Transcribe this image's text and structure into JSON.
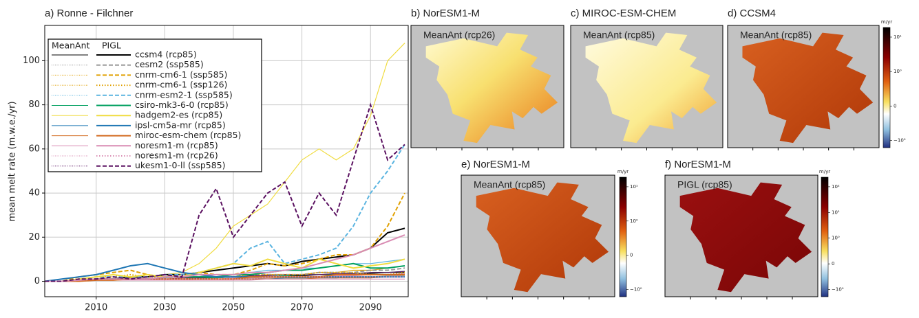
{
  "chart_data": {
    "type": "line",
    "title": "a) Ronne - Filchner",
    "y_label": "mean melt rate (m.w.e./yr)",
    "legend_headers": [
      "MeanAnt",
      "PIGL"
    ],
    "x": [
      1995,
      2000,
      2005,
      2010,
      2015,
      2020,
      2025,
      2030,
      2035,
      2040,
      2045,
      2050,
      2055,
      2060,
      2065,
      2070,
      2075,
      2080,
      2085,
      2090,
      2095,
      2100
    ],
    "xlim": [
      1995,
      2101
    ],
    "xticks": [
      2010,
      2030,
      2050,
      2070,
      2090
    ],
    "ylim": [
      -7,
      116
    ],
    "yticks": [
      0,
      20,
      40,
      60,
      80,
      100
    ],
    "grid": true,
    "series": [
      {
        "name": "ccsm4 (rcp85)",
        "color": "#000000",
        "dash": "solid",
        "values": [
          0,
          0,
          0.5,
          1,
          1,
          2,
          2,
          3,
          3,
          4,
          5,
          6,
          7,
          8,
          7,
          9,
          10,
          11,
          12,
          15,
          22,
          24
        ],
        "meanant_values": [
          0,
          0,
          0,
          0.5,
          0.5,
          1,
          1,
          1,
          1,
          1.5,
          1.5,
          2,
          2,
          2,
          2.5,
          2.5,
          3,
          3,
          3,
          3.5,
          4,
          4
        ]
      },
      {
        "name": "cesm2 (ssp585)",
        "color": "#9a9a9a",
        "dash": "dashed",
        "values": [
          0,
          0,
          0.5,
          1,
          1,
          1,
          1,
          1.5,
          2,
          2,
          2,
          2,
          3,
          3,
          3,
          3,
          4,
          4,
          4,
          5,
          5,
          6
        ],
        "meanant_values": [
          0,
          0,
          0,
          0.5,
          0.5,
          0.5,
          0.5,
          1,
          1,
          1,
          1,
          1,
          1,
          1.5,
          1.5,
          1.5,
          2,
          2,
          2,
          2,
          2.5,
          2.5
        ]
      },
      {
        "name": "cnrm-cm6-1 (ssp585)",
        "color": "#e0a000",
        "dash": "dashed",
        "values": [
          0,
          0,
          2,
          3,
          4,
          5,
          3,
          2,
          3,
          4,
          3,
          3,
          5,
          8,
          7,
          8,
          10,
          12,
          12,
          15,
          25,
          40
        ],
        "meanant_values": [
          0,
          0,
          0.5,
          1,
          1,
          1.5,
          1,
          1,
          1.5,
          2,
          1.5,
          2,
          2,
          3,
          3,
          3,
          4,
          4,
          5,
          5,
          6,
          7
        ]
      },
      {
        "name": "cnrm-cm6-1 (ssp126)",
        "color": "#e0a000",
        "dash": "dotted",
        "values": [
          0,
          0,
          1,
          2,
          2,
          3,
          2,
          2,
          2,
          3,
          2,
          2,
          3,
          3,
          3,
          3,
          4,
          4,
          4,
          3,
          3,
          4
        ],
        "meanant_values": [
          0,
          0,
          0.5,
          1,
          1,
          1,
          1,
          1,
          1,
          1,
          1,
          1,
          1.5,
          1.5,
          1.5,
          1.5,
          2,
          2,
          2,
          2,
          2,
          2
        ]
      },
      {
        "name": "cnrm-esm2-1 (ssp585)",
        "color": "#5ab4e0",
        "dash": "dashed",
        "values": [
          0,
          0,
          1,
          2,
          2,
          2,
          2,
          3,
          3,
          4,
          6,
          8,
          15,
          18,
          8,
          10,
          12,
          15,
          25,
          40,
          50,
          62
        ],
        "meanant_values": [
          0,
          0,
          0.5,
          1,
          1,
          1,
          1,
          1.5,
          2,
          2,
          3,
          3,
          4,
          5,
          5,
          6,
          6,
          7,
          8,
          8,
          9,
          10
        ]
      },
      {
        "name": "csiro-mk3-6-0 (rcp85)",
        "color": "#00a060",
        "dash": "solid",
        "values": [
          0,
          0,
          0.5,
          1,
          1,
          1,
          1,
          2,
          2,
          2,
          2,
          3,
          3,
          4,
          5,
          5,
          6,
          7,
          8,
          6,
          6,
          7
        ],
        "meanant_values": [
          0,
          0,
          0.5,
          0.5,
          1,
          1,
          1,
          1,
          1,
          1.5,
          1.5,
          2,
          2,
          2,
          2.5,
          3,
          3,
          3,
          3.5,
          4,
          4,
          4.5
        ]
      },
      {
        "name": "hadgem2-es (rcp85)",
        "color": "#f0dc40",
        "dash": "solid",
        "values": [
          0,
          0,
          1,
          2,
          3,
          2,
          3,
          2,
          2,
          4,
          6,
          8,
          7,
          10,
          8,
          6,
          10,
          8,
          6,
          7,
          8,
          10
        ],
        "meanant_values": [
          0,
          0,
          0.5,
          1,
          1,
          2,
          2,
          3,
          4,
          8,
          15,
          25,
          30,
          35,
          45,
          55,
          60,
          55,
          60,
          75,
          100,
          108
        ]
      },
      {
        "name": "ipsl-cm5a-mr (rcp85)",
        "color": "#1f77b4",
        "dash": "solid",
        "values": [
          0,
          1,
          2,
          3,
          5,
          7,
          8,
          6,
          4,
          3,
          2,
          2,
          2,
          2,
          2,
          2,
          2,
          2,
          2,
          2,
          2,
          2
        ],
        "meanant_values": [
          0,
          0,
          0,
          0.5,
          0.5,
          0.5,
          0.5,
          1,
          1,
          1,
          1,
          1,
          1,
          1,
          1.5,
          1.5,
          1.5,
          1.5,
          2,
          2,
          2,
          2
        ]
      },
      {
        "name": "miroc-esm-chem (rcp85)",
        "color": "#d2691e",
        "dash": "solid",
        "values": [
          0,
          0,
          0,
          0.5,
          0.5,
          1,
          1,
          1,
          1,
          1,
          1,
          1,
          2,
          2,
          2,
          2,
          2,
          3,
          3,
          3,
          3,
          3
        ],
        "meanant_values": [
          0,
          0,
          0,
          0.5,
          0.5,
          0.5,
          0.5,
          0.5,
          0.5,
          1,
          1,
          1,
          1,
          1,
          1,
          1,
          1.5,
          1.5,
          1.5,
          1.5,
          2,
          2
        ]
      },
      {
        "name": "noresm1-m (rcp85)",
        "color": "#d98cb3",
        "dash": "solid",
        "values": [
          0,
          0,
          0.5,
          1,
          1,
          1,
          1,
          2,
          2,
          3,
          3,
          3,
          4,
          4,
          5,
          6,
          8,
          10,
          12,
          15,
          18,
          21
        ],
        "meanant_values": [
          0,
          0,
          0,
          0.5,
          0.5,
          0.5,
          1,
          1,
          1,
          1,
          1,
          1.5,
          1.5,
          1.5,
          2,
          2,
          2,
          2.5,
          2.5,
          3,
          3,
          3.5
        ]
      },
      {
        "name": "noresm1-m (rcp26)",
        "color": "#d98cb3",
        "dash": "dotted",
        "values": [
          0,
          0,
          0.5,
          1,
          1,
          1,
          1,
          1,
          1,
          1,
          1,
          1,
          1,
          2,
          2,
          2,
          2,
          2,
          2,
          2,
          2,
          2
        ],
        "meanant_values": [
          0,
          0,
          0,
          0.5,
          0.5,
          0.5,
          0.5,
          0.5,
          0.5,
          0.5,
          0.5,
          0.5,
          0.5,
          1,
          1,
          1,
          1,
          1,
          1,
          1,
          1,
          1
        ]
      },
      {
        "name": "ukesm1-0-ll (ssp585)",
        "color": "#5a1060",
        "dash": "dashed",
        "values": [
          0,
          0,
          1,
          1,
          2,
          1,
          2,
          3,
          2,
          30,
          42,
          20,
          30,
          40,
          45,
          25,
          40,
          30,
          55,
          80,
          55,
          62
        ],
        "meanant_values": [
          0,
          0,
          0.5,
          0.5,
          1,
          1,
          1,
          1,
          1.5,
          1.5,
          2,
          2,
          2.5,
          2.5,
          3,
          3,
          3,
          3.5,
          3.5,
          4,
          4,
          4.5
        ]
      }
    ]
  },
  "maps": [
    {
      "title": "b) NorESM1-M",
      "label": "MeanAnt (rcp26)"
    },
    {
      "title": "c) MIROC-ESM-CHEM",
      "label": "MeanAnt (rcp85)"
    },
    {
      "title": "d) CCSM4",
      "label": "MeanAnt (rcp85)",
      "colorbar": {
        "unit": "m/yr",
        "ticks": [
          "10¹",
          "10⁰",
          "0",
          "−10⁰"
        ]
      }
    },
    {
      "title": "e) NorESM1-M",
      "label": "MeanAnt (rcp85)",
      "colorbar": {
        "unit": "m/yr",
        "ticks": [
          "10¹",
          "10⁰",
          "0",
          "−10⁰"
        ]
      }
    },
    {
      "title": "f) NorESM1-M",
      "label": "PIGL (rcp85)",
      "colorbar": {
        "unit": "m/yr",
        "ticks": [
          "10²",
          "10¹",
          "10⁰",
          "0",
          "−10⁰"
        ]
      }
    }
  ]
}
